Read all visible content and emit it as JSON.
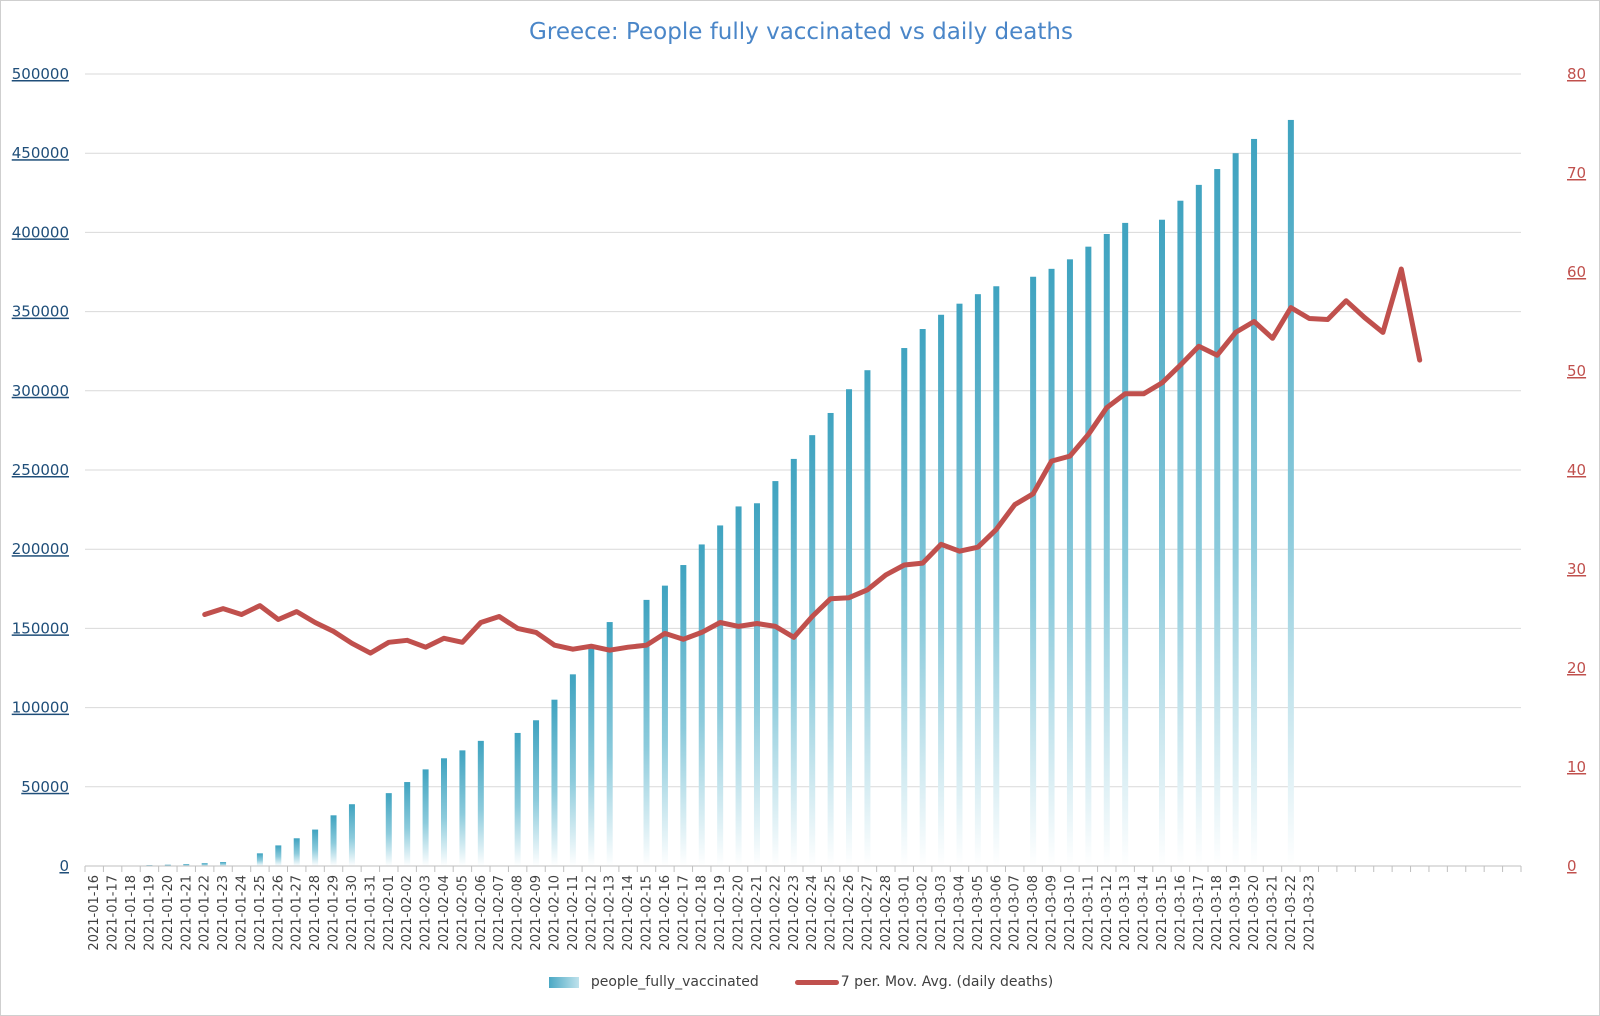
{
  "chart_data": {
    "type": "bar",
    "title": "Greece: People fully vaccinated vs daily deaths",
    "categories": [
      "2021-01-16",
      "2021-01-17",
      "2021-01-18",
      "2021-01-19",
      "2021-01-20",
      "2021-01-21",
      "2021-01-22",
      "2021-01-23",
      "2021-01-24",
      "2021-01-25",
      "2021-01-26",
      "2021-01-27",
      "2021-01-28",
      "2021-01-29",
      "2021-01-30",
      "2021-01-31",
      "2021-02-01",
      "2021-02-02",
      "2021-02-03",
      "2021-02-04",
      "2021-02-05",
      "2021-02-06",
      "2021-02-07",
      "2021-02-08",
      "2021-02-09",
      "2021-02-10",
      "2021-02-11",
      "2021-02-12",
      "2021-02-13",
      "2021-02-14",
      "2021-02-15",
      "2021-02-16",
      "2021-02-17",
      "2021-02-18",
      "2021-02-19",
      "2021-02-20",
      "2021-02-21",
      "2021-02-22",
      "2021-02-23",
      "2021-02-24",
      "2021-02-25",
      "2021-02-26",
      "2021-02-27",
      "2021-02-28",
      "2021-03-01",
      "2021-03-02",
      "2021-03-03",
      "2021-03-04",
      "2021-03-05",
      "2021-03-06",
      "2021-03-07",
      "2021-03-08",
      "2021-03-09",
      "2021-03-10",
      "2021-03-11",
      "2021-03-12",
      "2021-03-13",
      "2021-03-14",
      "2021-03-15",
      "2021-03-16",
      "2021-03-17",
      "2021-03-18",
      "2021-03-19",
      "2021-03-20",
      "2021-03-21",
      "2021-03-22",
      "2021-03-23"
    ],
    "series": [
      {
        "name": "people_fully_vaccinated",
        "type": "bar",
        "axis": "left",
        "color": "#4aa8c4",
        "values": [
          null,
          null,
          null,
          500,
          800,
          1200,
          1800,
          2500,
          null,
          8000,
          13000,
          17500,
          23000,
          32000,
          39000,
          null,
          46000,
          53000,
          61000,
          68000,
          73000,
          79000,
          null,
          84000,
          92000,
          105000,
          121000,
          139000,
          154000,
          null,
          168000,
          177000,
          190000,
          203000,
          215000,
          227000,
          229000,
          243000,
          257000,
          272000,
          286000,
          301000,
          313000,
          null,
          327000,
          339000,
          348000,
          355000,
          361000,
          366000,
          null,
          372000,
          377000,
          383000,
          391000,
          399000,
          406000,
          null,
          408000,
          420000,
          430000,
          440000,
          450000,
          459000,
          null,
          471000,
          null
        ]
      },
      {
        "name": "7 per. Mov. Avg. (daily deaths)",
        "type": "line",
        "axis": "right",
        "color": "#c0504d",
        "x_start_index": 6,
        "values": [
          25.4,
          26.0,
          25.4,
          26.3,
          24.9,
          25.7,
          24.6,
          23.7,
          22.5,
          21.5,
          22.6,
          22.8,
          22.1,
          23.0,
          22.6,
          24.6,
          25.2,
          24.0,
          23.6,
          22.3,
          21.9,
          22.2,
          21.8,
          22.1,
          22.3,
          23.5,
          22.9,
          23.6,
          24.6,
          24.2,
          24.5,
          24.2,
          23.1,
          25.2,
          27.0,
          27.1,
          27.9,
          29.4,
          30.4,
          30.6,
          32.5,
          31.8,
          32.2,
          34.0,
          36.5,
          37.6,
          40.9,
          41.4,
          43.6,
          46.3,
          47.7,
          47.7,
          48.8,
          50.6,
          52.5,
          51.6,
          53.9,
          55.0,
          53.3,
          56.4,
          55.3,
          55.2,
          57.1,
          55.4,
          53.9,
          60.3,
          51.1
        ]
      }
    ],
    "left_axis": {
      "min": 0,
      "max": 500000,
      "step": 50000,
      "color": "#1f4e79",
      "ticks": [
        "0",
        "50000",
        "100000",
        "150000",
        "200000",
        "250000",
        "300000",
        "350000",
        "400000",
        "450000",
        "500000"
      ]
    },
    "right_axis": {
      "min": 0,
      "max": 80,
      "step": 10,
      "color": "#c0504d",
      "ticks": [
        "0",
        "10",
        "20",
        "30",
        "40",
        "50",
        "60",
        "70",
        "80"
      ]
    },
    "total_slots": 78,
    "grid": true,
    "legend_position": "bottom-center",
    "xlabel": "",
    "ylabel": ""
  },
  "legend": {
    "bar_label": "people_fully_vaccinated",
    "line_label": "7 per. Mov. Avg. (daily deaths)"
  }
}
